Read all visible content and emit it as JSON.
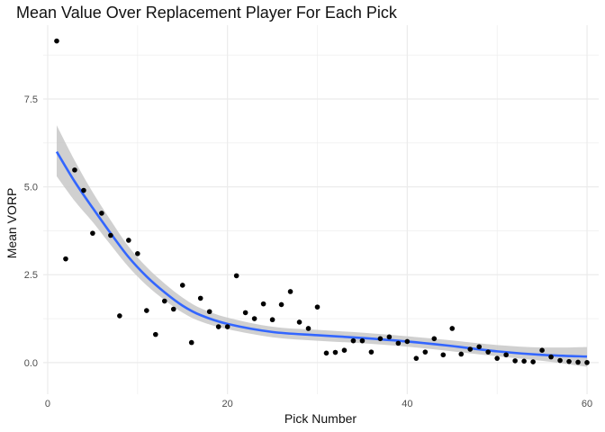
{
  "chart_data": {
    "type": "scatter",
    "title": "Mean Value Over Replacement Player For Each Pick",
    "xlabel": "Pick Number",
    "ylabel": "Mean VORP",
    "xlim": [
      -0.5,
      61.3
    ],
    "ylim": [
      -0.9,
      9.6
    ],
    "x_ticks": [
      0,
      20,
      40,
      60
    ],
    "x_tick_labels": [
      "0",
      "20",
      "40",
      "60"
    ],
    "y_ticks": [
      0,
      2.5,
      5,
      7.5
    ],
    "y_tick_labels": [
      "0.0",
      "2.5",
      "5.0",
      "7.5"
    ],
    "grid": true,
    "points": {
      "x": [
        1,
        2,
        3,
        4,
        5,
        6,
        7,
        8,
        9,
        10,
        11,
        12,
        13,
        14,
        15,
        16,
        17,
        18,
        19,
        20,
        21,
        22,
        23,
        24,
        25,
        26,
        27,
        28,
        29,
        30,
        31,
        32,
        33,
        34,
        35,
        36,
        37,
        38,
        39,
        40,
        41,
        42,
        43,
        44,
        45,
        46,
        47,
        48,
        49,
        50,
        51,
        52,
        53,
        54,
        55,
        56,
        57,
        58,
        59,
        60
      ],
      "y": [
        9.15,
        2.95,
        5.48,
        4.9,
        3.68,
        4.25,
        3.62,
        1.33,
        3.48,
        3.1,
        1.48,
        0.8,
        1.75,
        1.52,
        2.2,
        0.57,
        1.83,
        1.45,
        1.02,
        1.02,
        2.47,
        1.42,
        1.25,
        1.67,
        1.22,
        1.65,
        2.02,
        1.15,
        0.97,
        1.58,
        0.27,
        0.29,
        0.35,
        0.62,
        0.62,
        0.3,
        0.68,
        0.73,
        0.55,
        0.6,
        0.12,
        0.3,
        0.68,
        0.22,
        0.97,
        0.24,
        0.38,
        0.45,
        0.3,
        0.12,
        0.22,
        0.05,
        0.04,
        0.02,
        0.35,
        0.16,
        0.06,
        0.03,
        0.01,
        0.0
      ]
    },
    "smooth": {
      "x": [
        1,
        3,
        5,
        7,
        9,
        11,
        13,
        15,
        17,
        20,
        25,
        30,
        35,
        40,
        45,
        50,
        55,
        60
      ],
      "y": [
        6.0,
        5.15,
        4.4,
        3.68,
        3.0,
        2.45,
        2.0,
        1.62,
        1.35,
        1.1,
        0.87,
        0.78,
        0.7,
        0.6,
        0.47,
        0.32,
        0.22,
        0.17
      ],
      "lower": [
        5.3,
        4.6,
        4.0,
        3.35,
        2.72,
        2.2,
        1.78,
        1.42,
        1.17,
        0.95,
        0.72,
        0.62,
        0.55,
        0.45,
        0.32,
        0.18,
        0.05,
        -0.12
      ],
      "upper": [
        6.75,
        5.75,
        4.85,
        4.05,
        3.3,
        2.72,
        2.25,
        1.85,
        1.55,
        1.28,
        1.02,
        0.93,
        0.85,
        0.75,
        0.63,
        0.5,
        0.43,
        0.44
      ]
    },
    "colors": {
      "points": "#000000",
      "smooth_line": "#3366ff",
      "ribbon": "#c8c8c8",
      "grid": "#ebebeb"
    }
  }
}
